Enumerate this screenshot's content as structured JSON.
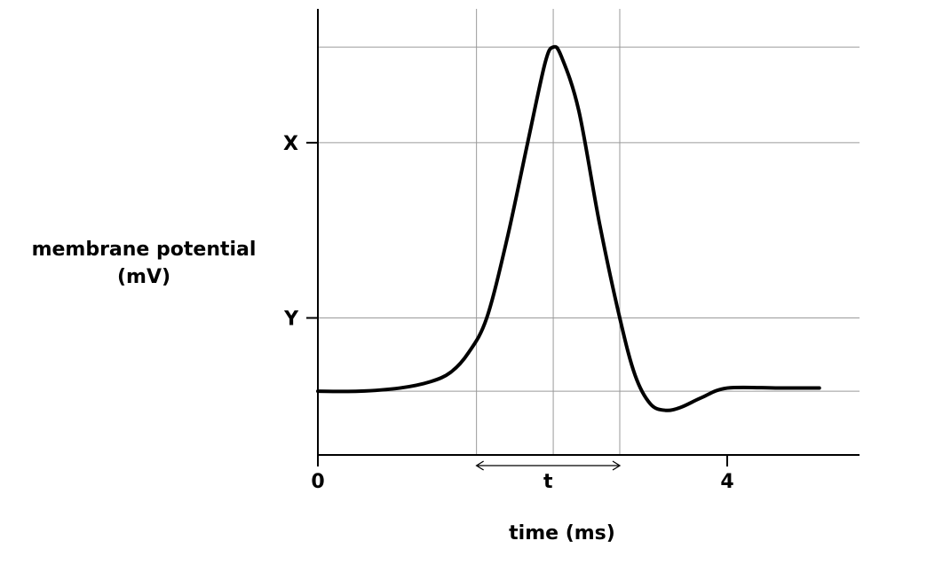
{
  "chart_data": {
    "type": "line",
    "title": "",
    "xlabel": "time (ms)",
    "ylabel_lines": [
      "membrane potential",
      "(mV)"
    ],
    "x_ticks": [
      {
        "value": 0,
        "label": "0"
      },
      {
        "value": 4,
        "label": "4"
      }
    ],
    "y_ticks": [
      {
        "value": 35,
        "label": "X"
      },
      {
        "value": -20,
        "label": "Y"
      }
    ],
    "xlim": [
      0,
      5.3
    ],
    "ylim": [
      -63,
      77
    ],
    "grid": true,
    "grid_x": [
      1.55,
      2.3,
      2.95
    ],
    "grid_y": [
      65,
      35,
      -20,
      -43
    ],
    "annotation": {
      "label": "t",
      "x_start": 1.55,
      "x_end": 2.95
    },
    "series": [
      {
        "points": [
          [
            0,
            -43
          ],
          [
            0.4,
            -43
          ],
          [
            0.8,
            -42
          ],
          [
            1.1,
            -40
          ],
          [
            1.3,
            -37
          ],
          [
            1.47,
            -31
          ],
          [
            1.65,
            -20
          ],
          [
            1.85,
            5
          ],
          [
            2.05,
            35
          ],
          [
            2.22,
            60
          ],
          [
            2.3,
            65
          ],
          [
            2.38,
            62
          ],
          [
            2.55,
            45
          ],
          [
            2.75,
            10
          ],
          [
            2.95,
            -20
          ],
          [
            3.1,
            -38
          ],
          [
            3.25,
            -47
          ],
          [
            3.4,
            -49
          ],
          [
            3.55,
            -48
          ],
          [
            3.75,
            -45
          ],
          [
            4.0,
            -42
          ],
          [
            4.5,
            -42
          ],
          [
            4.9,
            -42
          ]
        ]
      }
    ]
  }
}
